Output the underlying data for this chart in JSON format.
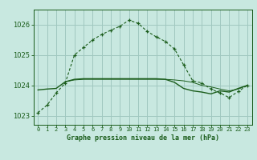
{
  "title": "Graphe pression niveau de la mer (hPa)",
  "background_color": "#c8e8e0",
  "grid_color": "#a0c8c0",
  "line_color": "#1a5c1a",
  "xlim": [
    -0.5,
    23.5
  ],
  "ylim": [
    1022.7,
    1026.5
  ],
  "yticks": [
    1023,
    1024,
    1025,
    1026
  ],
  "xticks": [
    0,
    1,
    2,
    3,
    4,
    5,
    6,
    7,
    8,
    9,
    10,
    11,
    12,
    13,
    14,
    15,
    16,
    17,
    18,
    19,
    20,
    21,
    22,
    23
  ],
  "series1_x": [
    0,
    1,
    2,
    3,
    4,
    5,
    6,
    7,
    8,
    9,
    10,
    11,
    12,
    13,
    14,
    15,
    16,
    17,
    18,
    19,
    20,
    21,
    22,
    23
  ],
  "series1_y": [
    1023.1,
    1023.35,
    1023.75,
    1024.08,
    1025.0,
    1025.25,
    1025.5,
    1025.68,
    1025.82,
    1025.95,
    1026.15,
    1026.05,
    1025.78,
    1025.6,
    1025.45,
    1025.2,
    1024.68,
    1024.15,
    1024.08,
    1023.88,
    1023.75,
    1023.6,
    1023.8,
    1024.0
  ],
  "series2_x": [
    0,
    1,
    2,
    3,
    4,
    5,
    6,
    7,
    8,
    9,
    10,
    11,
    12,
    13,
    14,
    15,
    16,
    17,
    18,
    19,
    20,
    21,
    22,
    23
  ],
  "series2_y": [
    1023.85,
    1023.88,
    1023.9,
    1024.12,
    1024.2,
    1024.22,
    1024.22,
    1024.22,
    1024.22,
    1024.22,
    1024.22,
    1024.22,
    1024.22,
    1024.22,
    1024.2,
    1024.1,
    1023.9,
    1023.82,
    1023.78,
    1023.72,
    1023.82,
    1023.78,
    1023.9,
    1024.0
  ],
  "series3_x": [
    3,
    4,
    5,
    6,
    7,
    8,
    9,
    10,
    11,
    12,
    13,
    14,
    15,
    16,
    17,
    18,
    19,
    20,
    21,
    22,
    23
  ],
  "series3_y": [
    1024.12,
    1024.18,
    1024.2,
    1024.2,
    1024.2,
    1024.2,
    1024.2,
    1024.2,
    1024.2,
    1024.2,
    1024.2,
    1024.2,
    1024.18,
    1024.15,
    1024.1,
    1024.0,
    1023.95,
    1023.88,
    1023.82,
    1023.88,
    1024.0
  ],
  "xlabel_fontsize": 6.0,
  "ytick_fontsize": 6.0,
  "xtick_fontsize": 5.0
}
